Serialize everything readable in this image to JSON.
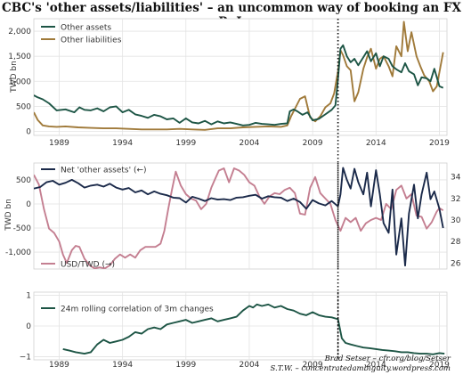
{
  "page": {
    "title": "CBC's 'other assets/liabilities' – an uncommon way of booking an FX PnL",
    "credit_line1": "Brad Setser – cfr.org/blog/Setser",
    "credit_line2": "S.T.W. – concentratedambiguity.wordpress.com"
  },
  "chart_data": [
    {
      "type": "line",
      "ylabel": "TWD bn",
      "ylim": [
        -80,
        2250
      ],
      "yticks": [
        0,
        500,
        1000,
        1500,
        2000
      ],
      "ytick_labels": [
        "0",
        "500",
        "1,000",
        "1,500",
        "2,000"
      ],
      "xlim": [
        1987.0,
        2019.6
      ],
      "xticks": [
        1989,
        1994,
        1999,
        2004,
        2009,
        2014,
        2019
      ],
      "grid": true,
      "legend": "top-left",
      "vline": 2011.0,
      "series": [
        {
          "name": "Other assets",
          "color": "#1d5545",
          "x": [
            1987.0,
            1987.3,
            1987.7,
            1988.2,
            1988.8,
            1989.5,
            1990.2,
            1990.6,
            1991.0,
            1991.5,
            1992.0,
            1992.5,
            1993.0,
            1993.5,
            1994.0,
            1994.5,
            1995.0,
            1995.5,
            1996.0,
            1996.5,
            1997.0,
            1997.5,
            1998.0,
            1998.5,
            1999.0,
            1999.5,
            2000.0,
            2000.5,
            2001.0,
            2001.5,
            2002.0,
            2002.5,
            2003.0,
            2003.5,
            2004.0,
            2004.5,
            2005.0,
            2005.5,
            2006.0,
            2006.5,
            2007.0,
            2007.2,
            2007.5,
            2007.8,
            2008.2,
            2008.6,
            2009.0,
            2009.5,
            2010.0,
            2010.5,
            2010.8,
            2011.0,
            2011.2,
            2011.4,
            2011.7,
            2012.0,
            2012.3,
            2012.6,
            2013.0,
            2013.3,
            2013.6,
            2014.0,
            2014.3,
            2014.6,
            2015.0,
            2015.3,
            2015.6,
            2016.0,
            2016.3,
            2016.6,
            2017.0,
            2017.3,
            2017.6,
            2018.0,
            2018.3,
            2018.6,
            2019.0,
            2019.3
          ],
          "values": [
            720,
            680,
            640,
            560,
            420,
            440,
            380,
            480,
            430,
            420,
            460,
            400,
            480,
            500,
            380,
            430,
            340,
            310,
            270,
            330,
            300,
            240,
            260,
            170,
            260,
            180,
            160,
            210,
            140,
            200,
            160,
            180,
            150,
            120,
            130,
            170,
            150,
            140,
            130,
            150,
            160,
            400,
            440,
            400,
            330,
            380,
            220,
            250,
            340,
            430,
            520,
            1050,
            1650,
            1720,
            1500,
            1380,
            1450,
            1320,
            1480,
            1600,
            1400,
            1560,
            1300,
            1500,
            1450,
            1300,
            1240,
            1180,
            1360,
            1200,
            1140,
            920,
            1080,
            1060,
            1000,
            1250,
            900,
            870
          ]
        },
        {
          "name": "Other liabilities",
          "color": "#a07a3a",
          "x": [
            1987.0,
            1987.3,
            1987.7,
            1988.2,
            1988.8,
            1989.5,
            1990.5,
            1991.5,
            1992.5,
            1993.5,
            1994.5,
            1995.5,
            1996.5,
            1997.5,
            1998.5,
            1999.5,
            2000.5,
            2001.5,
            2002.5,
            2003.5,
            2004.5,
            2005.5,
            2006.5,
            2007.0,
            2007.3,
            2007.6,
            2008.0,
            2008.4,
            2008.8,
            2009.2,
            2009.6,
            2010.0,
            2010.4,
            2010.7,
            2011.0,
            2011.2,
            2011.4,
            2011.7,
            2012.0,
            2012.3,
            2012.6,
            2013.0,
            2013.3,
            2013.6,
            2014.0,
            2014.3,
            2014.6,
            2015.0,
            2015.3,
            2015.6,
            2016.0,
            2016.2,
            2016.5,
            2016.8,
            2017.2,
            2017.5,
            2017.8,
            2018.2,
            2018.5,
            2018.8,
            2019.0,
            2019.3
          ],
          "values": [
            380,
            230,
            120,
            100,
            90,
            100,
            80,
            70,
            60,
            60,
            50,
            40,
            40,
            40,
            50,
            40,
            30,
            60,
            60,
            80,
            90,
            100,
            90,
            120,
            300,
            450,
            650,
            700,
            280,
            200,
            300,
            480,
            560,
            760,
            1200,
            1620,
            1520,
            1300,
            1220,
            600,
            780,
            1250,
            1480,
            1650,
            1250,
            1450,
            1500,
            1300,
            1100,
            1700,
            1500,
            2190,
            1600,
            1980,
            1500,
            1300,
            1120,
            1000,
            800,
            900,
            1180,
            1580
          ]
        }
      ]
    },
    {
      "type": "line",
      "ylabel": "TWD bn",
      "ylim": [
        -1350,
        850
      ],
      "yticks": [
        -1000,
        -500,
        0,
        500
      ],
      "ytick_labels": [
        "-1,000",
        "-500",
        "0",
        "500"
      ],
      "y2lim": [
        25.45,
        35.3
      ],
      "y2ticks": [
        26,
        28,
        30,
        32,
        34
      ],
      "xlim": [
        1987.0,
        2019.6
      ],
      "grid": true,
      "legend": "top-left and bottom-left",
      "vline": 2011.0,
      "series": [
        {
          "name": "Net 'other assets'  (←)",
          "color": "#1b2a4a",
          "axis": "left",
          "x": [
            1987.0,
            1987.5,
            1988.0,
            1988.5,
            1989.0,
            1989.5,
            1990.0,
            1990.5,
            1991.0,
            1991.5,
            1992.0,
            1992.5,
            1993.0,
            1993.5,
            1994.0,
            1994.5,
            1995.0,
            1995.5,
            1996.0,
            1996.5,
            1997.0,
            1997.5,
            1998.0,
            1998.5,
            1999.0,
            1999.5,
            2000.0,
            2000.5,
            2001.0,
            2001.5,
            2002.0,
            2002.5,
            2003.0,
            2003.5,
            2004.0,
            2004.5,
            2005.0,
            2005.5,
            2006.0,
            2006.5,
            2007.0,
            2007.5,
            2008.0,
            2008.5,
            2009.0,
            2009.5,
            2010.0,
            2010.5,
            2011.0,
            2011.2,
            2011.4,
            2011.7,
            2012.0,
            2012.3,
            2012.6,
            2013.0,
            2013.3,
            2013.6,
            2014.0,
            2014.3,
            2014.6,
            2015.0,
            2015.3,
            2015.6,
            2016.0,
            2016.3,
            2016.6,
            2017.0,
            2017.3,
            2017.6,
            2018.0,
            2018.3,
            2018.6,
            2019.0,
            2019.3
          ],
          "values": [
            320,
            350,
            450,
            480,
            400,
            440,
            500,
            430,
            340,
            380,
            400,
            360,
            420,
            340,
            300,
            330,
            240,
            280,
            200,
            260,
            210,
            180,
            130,
            120,
            30,
            150,
            110,
            60,
            120,
            90,
            100,
            80,
            130,
            140,
            170,
            190,
            110,
            160,
            140,
            130,
            60,
            110,
            40,
            -100,
            80,
            10,
            -30,
            60,
            -50,
            200,
            750,
            500,
            320,
            730,
            450,
            200,
            650,
            -50,
            700,
            200,
            -400,
            -600,
            300,
            -1050,
            -300,
            -1280,
            -200,
            400,
            -300,
            200,
            650,
            100,
            260,
            -100,
            -500
          ]
        },
        {
          "name": "USD/TWD  (→)",
          "color": "#c47f91",
          "axis": "right",
          "x": [
            1987.0,
            1987.4,
            1987.8,
            1988.2,
            1988.6,
            1989.0,
            1989.3,
            1989.6,
            1990.0,
            1990.3,
            1990.6,
            1991.0,
            1991.4,
            1991.8,
            1992.2,
            1992.6,
            1993.0,
            1993.4,
            1993.8,
            1994.2,
            1994.6,
            1995.0,
            1995.4,
            1995.8,
            1996.2,
            1996.6,
            1997.0,
            1997.3,
            1997.6,
            1997.9,
            1998.2,
            1998.6,
            1999.0,
            1999.4,
            1999.8,
            2000.2,
            2000.6,
            2001.0,
            2001.3,
            2001.6,
            2002.0,
            2002.4,
            2002.8,
            2003.2,
            2003.6,
            2004.0,
            2004.4,
            2004.8,
            2005.2,
            2005.6,
            2006.0,
            2006.4,
            2006.8,
            2007.2,
            2007.6,
            2008.0,
            2008.4,
            2008.8,
            2009.2,
            2009.6,
            2010.0,
            2010.4,
            2010.8,
            2011.2,
            2011.6,
            2012.0,
            2012.4,
            2012.8,
            2013.2,
            2013.6,
            2014.0,
            2014.4,
            2014.8,
            2015.2,
            2015.6,
            2016.0,
            2016.4,
            2016.8,
            2017.2,
            2017.6,
            2018.0,
            2018.4,
            2018.8,
            2019.0,
            2019.3
          ],
          "values": [
            34.2,
            33.3,
            31.0,
            29.2,
            28.8,
            28.0,
            26.8,
            26.0,
            27.2,
            27.6,
            27.5,
            26.4,
            25.8,
            25.5,
            25.6,
            25.5,
            25.8,
            26.4,
            26.8,
            26.5,
            26.8,
            26.5,
            27.2,
            27.5,
            27.5,
            27.5,
            27.8,
            29.0,
            31.0,
            32.8,
            34.5,
            33.2,
            32.4,
            32.0,
            31.8,
            31.0,
            31.5,
            33.0,
            33.8,
            34.6,
            34.8,
            33.5,
            34.8,
            34.6,
            34.2,
            33.5,
            33.2,
            32.2,
            31.5,
            32.2,
            32.5,
            32.4,
            32.8,
            33.0,
            32.5,
            30.6,
            30.5,
            33.0,
            34.0,
            32.5,
            32.0,
            31.5,
            30.0,
            29.0,
            30.2,
            29.8,
            30.2,
            29.0,
            29.7,
            30.0,
            30.2,
            30.0,
            31.5,
            31.0,
            32.8,
            33.2,
            32.0,
            32.4,
            30.4,
            30.3,
            29.2,
            29.8,
            30.8,
            31.1,
            30.9
          ]
        }
      ]
    },
    {
      "type": "line",
      "ylim": [
        -1.1,
        1.1
      ],
      "yticks": [
        -1,
        0,
        1
      ],
      "ytick_labels": [
        "−1",
        "0",
        "1"
      ],
      "xlim": [
        1987.0,
        2019.6
      ],
      "xticks": [
        1989,
        1994,
        1999,
        2004,
        2009,
        2014,
        2019
      ],
      "grid": true,
      "legend": "top-left",
      "vline": 2011.0,
      "series": [
        {
          "name": "24m rolling correlation of 3m changes",
          "color": "#1d5545",
          "x": [
            1989.3,
            1989.8,
            1990.3,
            1991.0,
            1991.5,
            1992.0,
            1992.5,
            1993.0,
            1993.5,
            1994.0,
            1994.5,
            1995.0,
            1995.5,
            1996.0,
            1996.5,
            1997.0,
            1997.5,
            1998.0,
            1998.5,
            1999.0,
            1999.5,
            2000.0,
            2000.5,
            2001.0,
            2001.5,
            2002.0,
            2002.5,
            2003.0,
            2003.5,
            2004.0,
            2004.3,
            2004.6,
            2005.0,
            2005.5,
            2006.0,
            2006.5,
            2007.0,
            2007.5,
            2008.0,
            2008.5,
            2009.0,
            2009.5,
            2010.0,
            2010.5,
            2011.0,
            2011.3,
            2011.6,
            2012.0,
            2012.5,
            2013.0,
            2013.5,
            2014.0,
            2014.5,
            2015.0,
            2015.5,
            2016.0,
            2016.5,
            2017.0,
            2017.5,
            2018.0,
            2018.5,
            2019.0,
            2019.4
          ],
          "values": [
            -0.75,
            -0.8,
            -0.85,
            -0.9,
            -0.85,
            -0.6,
            -0.45,
            -0.55,
            -0.5,
            -0.45,
            -0.35,
            -0.2,
            -0.25,
            -0.1,
            -0.05,
            -0.1,
            0.05,
            0.1,
            0.15,
            0.2,
            0.1,
            0.15,
            0.2,
            0.25,
            0.15,
            0.2,
            0.25,
            0.3,
            0.5,
            0.65,
            0.6,
            0.7,
            0.65,
            0.7,
            0.6,
            0.65,
            0.55,
            0.5,
            0.4,
            0.35,
            0.45,
            0.35,
            0.3,
            0.28,
            0.22,
            -0.4,
            -0.55,
            -0.6,
            -0.65,
            -0.7,
            -0.72,
            -0.75,
            -0.78,
            -0.8,
            -0.82,
            -0.85,
            -0.85,
            -0.88,
            -0.9,
            -0.9,
            -0.92,
            -0.88,
            -0.9
          ]
        }
      ]
    }
  ]
}
